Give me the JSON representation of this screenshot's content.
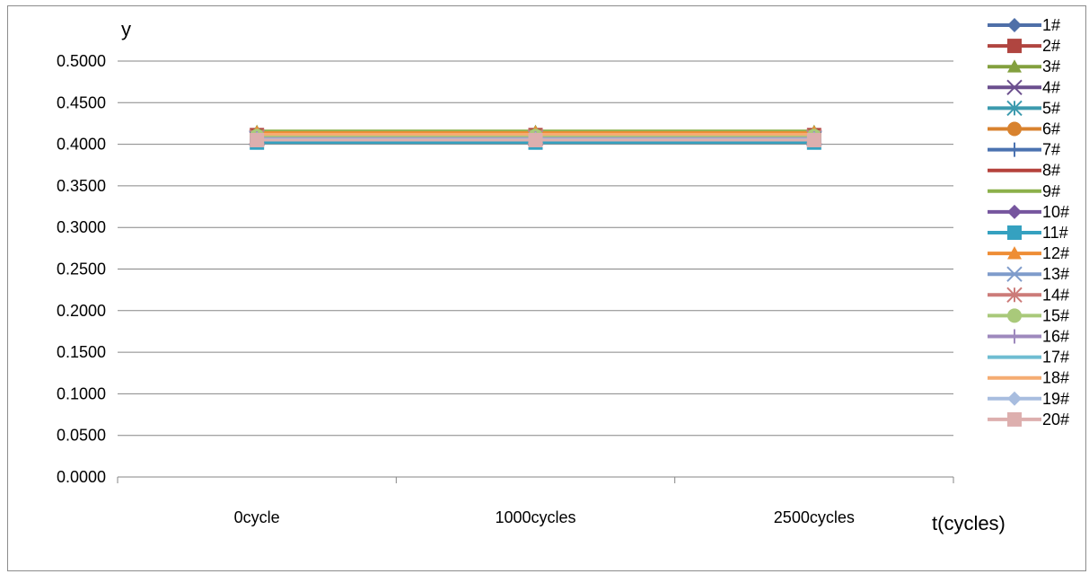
{
  "chart_data": {
    "type": "line",
    "title": "",
    "xlabel": "t(cycles)",
    "ylabel": "y",
    "categories": [
      "0cycle",
      "1000cycles",
      "2500cycles"
    ],
    "ylim": [
      0,
      0.5
    ],
    "ytick_step": 0.05,
    "ytick_labels": [
      "0.0000",
      "0.0500",
      "0.1000",
      "0.1500",
      "0.2000",
      "0.2500",
      "0.3000",
      "0.3500",
      "0.4000",
      "0.4500",
      "0.5000"
    ],
    "grid": true,
    "legend_position": "right",
    "series": [
      {
        "name": "1#",
        "values": [
          0.409,
          0.409,
          0.409
        ],
        "color": "#4F6FA8",
        "marker": "diamond"
      },
      {
        "name": "2#",
        "values": [
          0.411,
          0.411,
          0.411
        ],
        "color": "#B04540",
        "marker": "square"
      },
      {
        "name": "3#",
        "values": [
          0.415,
          0.415,
          0.415
        ],
        "color": "#83A03E",
        "marker": "triangle"
      },
      {
        "name": "4#",
        "values": [
          0.407,
          0.407,
          0.407
        ],
        "color": "#6B4F8E",
        "marker": "x"
      },
      {
        "name": "5#",
        "values": [
          0.408,
          0.408,
          0.408
        ],
        "color": "#3C9AAE",
        "marker": "star"
      },
      {
        "name": "6#",
        "values": [
          0.41,
          0.41,
          0.41
        ],
        "color": "#D8822E",
        "marker": "circle"
      },
      {
        "name": "7#",
        "values": [
          0.406,
          0.406,
          0.406
        ],
        "color": "#4A72B0",
        "marker": "plus"
      },
      {
        "name": "8#",
        "values": [
          0.411,
          0.411,
          0.411
        ],
        "color": "#B5423C",
        "marker": "none"
      },
      {
        "name": "9#",
        "values": [
          0.416,
          0.416,
          0.416
        ],
        "color": "#8CB04A",
        "marker": "none"
      },
      {
        "name": "10#",
        "values": [
          0.407,
          0.407,
          0.407
        ],
        "color": "#76559E",
        "marker": "diamond"
      },
      {
        "name": "11#",
        "values": [
          0.402,
          0.402,
          0.402
        ],
        "color": "#35A1C0",
        "marker": "square"
      },
      {
        "name": "12#",
        "values": [
          0.414,
          0.414,
          0.414
        ],
        "color": "#EE8D35",
        "marker": "triangle"
      },
      {
        "name": "13#",
        "values": [
          0.408,
          0.408,
          0.408
        ],
        "color": "#7F9CCB",
        "marker": "x"
      },
      {
        "name": "14#",
        "values": [
          0.409,
          0.409,
          0.409
        ],
        "color": "#CC7B79",
        "marker": "star"
      },
      {
        "name": "15#",
        "values": [
          0.41,
          0.41,
          0.41
        ],
        "color": "#A9C97A",
        "marker": "circle"
      },
      {
        "name": "16#",
        "values": [
          0.407,
          0.407,
          0.407
        ],
        "color": "#9E89BD",
        "marker": "plus"
      },
      {
        "name": "17#",
        "values": [
          0.405,
          0.405,
          0.405
        ],
        "color": "#6FBDD2",
        "marker": "none"
      },
      {
        "name": "18#",
        "values": [
          0.412,
          0.412,
          0.412
        ],
        "color": "#F5AC72",
        "marker": "none"
      },
      {
        "name": "19#",
        "values": [
          0.406,
          0.406,
          0.406
        ],
        "color": "#A8BDDF",
        "marker": "diamond"
      },
      {
        "name": "20#",
        "values": [
          0.405,
          0.405,
          0.405
        ],
        "color": "#DDAFAE",
        "marker": "square"
      }
    ]
  }
}
